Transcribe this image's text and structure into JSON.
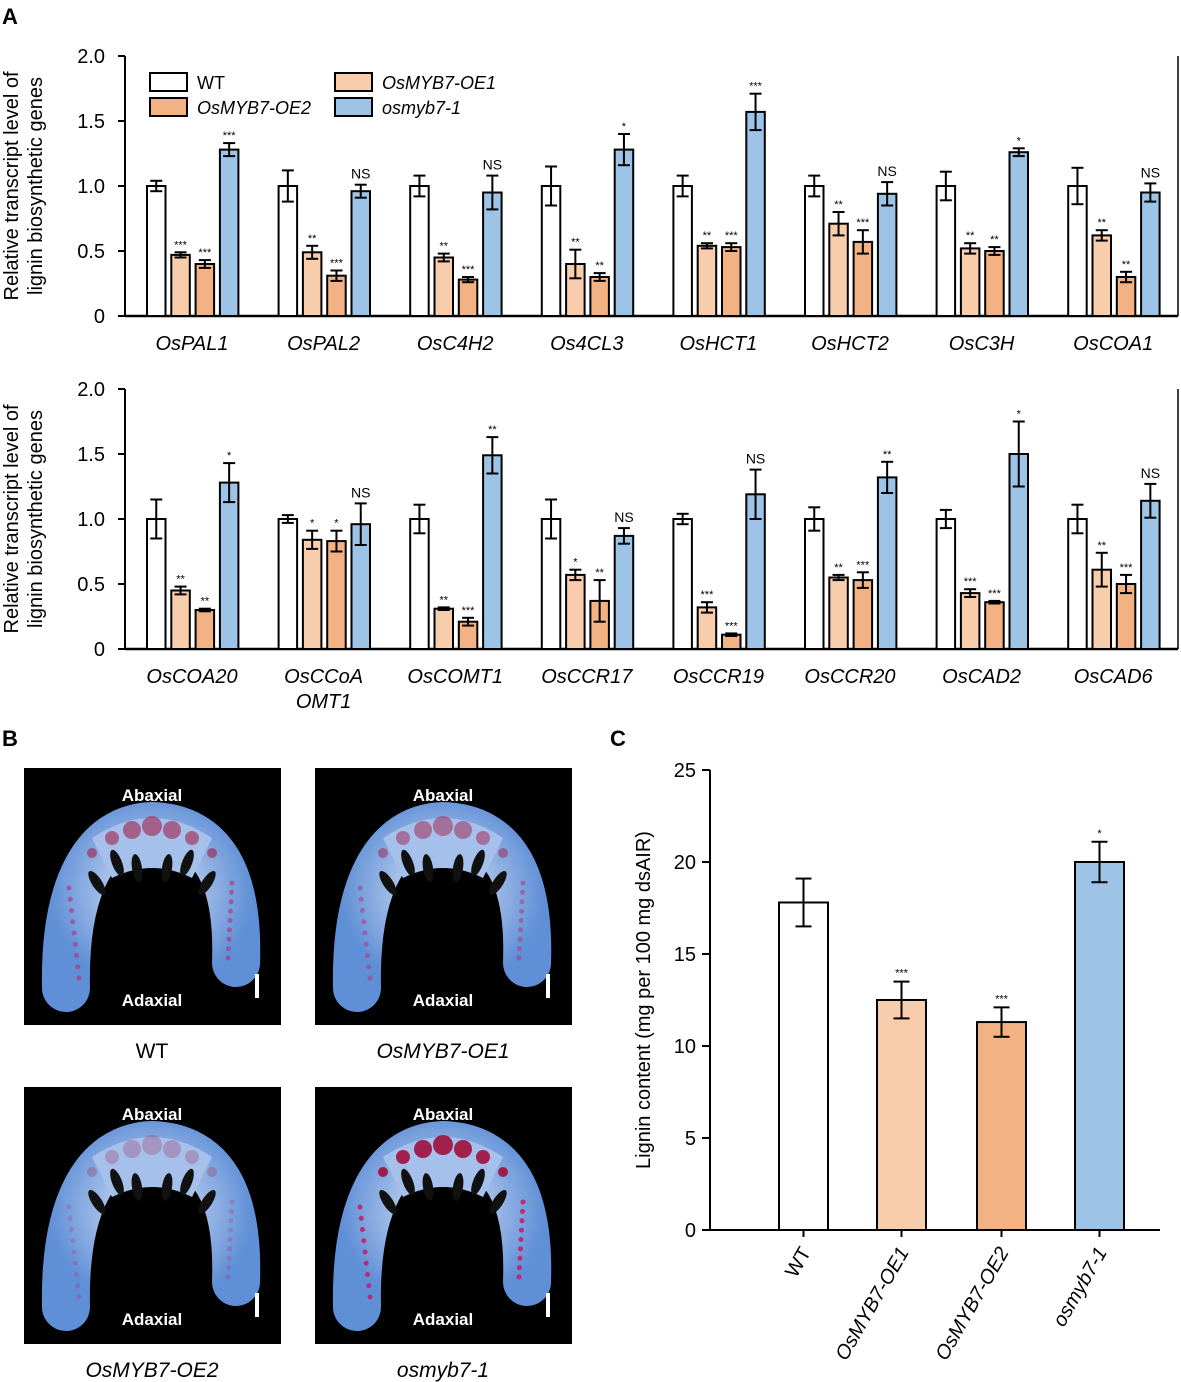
{
  "panel_labels": {
    "a": "A",
    "b": "B",
    "c": "C"
  },
  "colors": {
    "WT": "#ffffff",
    "OE1": "#f8cdac",
    "OE2": "#f2b283",
    "mutant": "#9dc3e6"
  },
  "legend": [
    {
      "key": "WT",
      "label": "WT",
      "italic": false
    },
    {
      "key": "OE1",
      "label": "OsMYB7-OE1",
      "italic": true
    },
    {
      "key": "OE2",
      "label": "OsMYB7-OE2",
      "italic": true
    },
    {
      "key": "mutant",
      "label": "osmyb7-1",
      "italic": true
    }
  ],
  "chart_data": [
    {
      "type": "bar",
      "panel": "A-top",
      "ylabel": [
        "Relative transcript level of",
        "lignin biosynthetic genes"
      ],
      "ylim": [
        0,
        2.0
      ],
      "yticks": [
        "0",
        "0.5",
        "1.0",
        "1.5",
        "2.0"
      ],
      "series_keys": [
        "WT",
        "OE1",
        "OE2",
        "mutant"
      ],
      "groups": [
        {
          "label": [
            "OsPAL1"
          ],
          "values": [
            1.0,
            0.47,
            0.4,
            1.28
          ],
          "errors": [
            0.04,
            0.02,
            0.03,
            0.05
          ],
          "sig": [
            "",
            "***",
            "***",
            "***"
          ]
        },
        {
          "label": [
            "OsPAL2"
          ],
          "values": [
            1.0,
            0.49,
            0.31,
            0.96
          ],
          "errors": [
            0.12,
            0.05,
            0.04,
            0.05
          ],
          "sig": [
            "",
            "**",
            "***",
            "NS"
          ]
        },
        {
          "label": [
            "OsC4H2"
          ],
          "values": [
            1.0,
            0.45,
            0.28,
            0.95
          ],
          "errors": [
            0.08,
            0.03,
            0.02,
            0.13
          ],
          "sig": [
            "",
            "**",
            "***",
            "NS"
          ]
        },
        {
          "label": [
            "Os4CL3"
          ],
          "values": [
            1.0,
            0.4,
            0.3,
            1.28
          ],
          "errors": [
            0.15,
            0.11,
            0.03,
            0.12
          ],
          "sig": [
            "",
            "**",
            "**",
            "*"
          ]
        },
        {
          "label": [
            "OsHCT1"
          ],
          "values": [
            1.0,
            0.54,
            0.53,
            1.57
          ],
          "errors": [
            0.08,
            0.02,
            0.03,
            0.14
          ],
          "sig": [
            "",
            "**",
            "***",
            "***"
          ]
        },
        {
          "label": [
            "OsHCT2"
          ],
          "values": [
            1.0,
            0.71,
            0.57,
            0.94
          ],
          "errors": [
            0.08,
            0.09,
            0.09,
            0.09
          ],
          "sig": [
            "",
            "**",
            "***",
            "NS"
          ]
        },
        {
          "label": [
            "OsC3H"
          ],
          "values": [
            1.0,
            0.52,
            0.5,
            1.26
          ],
          "errors": [
            0.11,
            0.04,
            0.03,
            0.03
          ],
          "sig": [
            "",
            "**",
            "**",
            "*"
          ]
        },
        {
          "label": [
            "OsCOA1"
          ],
          "values": [
            1.0,
            0.62,
            0.3,
            0.95
          ],
          "errors": [
            0.14,
            0.04,
            0.04,
            0.07
          ],
          "sig": [
            "",
            "**",
            "**",
            "NS"
          ]
        }
      ]
    },
    {
      "type": "bar",
      "panel": "A-bottom",
      "ylabel": [
        "Relative transcript level of",
        "lignin biosynthetic genes"
      ],
      "ylim": [
        0,
        2.0
      ],
      "yticks": [
        "0",
        "0.5",
        "1.0",
        "1.5",
        "2.0"
      ],
      "series_keys": [
        "WT",
        "OE1",
        "OE2",
        "mutant"
      ],
      "groups": [
        {
          "label": [
            "OsCOA20"
          ],
          "values": [
            1.0,
            0.45,
            0.3,
            1.28
          ],
          "errors": [
            0.15,
            0.03,
            0.01,
            0.15
          ],
          "sig": [
            "",
            "**",
            "**",
            "*"
          ]
        },
        {
          "label": [
            "OsCCoA",
            "OMT1"
          ],
          "values": [
            1.0,
            0.84,
            0.83,
            0.96
          ],
          "errors": [
            0.03,
            0.07,
            0.08,
            0.16
          ],
          "sig": [
            "",
            "*",
            "*",
            "NS"
          ]
        },
        {
          "label": [
            "OsCOMT1"
          ],
          "values": [
            1.0,
            0.31,
            0.21,
            1.49
          ],
          "errors": [
            0.11,
            0.01,
            0.03,
            0.14
          ],
          "sig": [
            "",
            "**",
            "***",
            "**"
          ]
        },
        {
          "label": [
            "OsCCR17"
          ],
          "values": [
            1.0,
            0.57,
            0.37,
            0.87
          ],
          "errors": [
            0.15,
            0.04,
            0.16,
            0.06
          ],
          "sig": [
            "",
            "*",
            "**",
            "NS"
          ]
        },
        {
          "label": [
            "OsCCR19"
          ],
          "values": [
            1.0,
            0.32,
            0.11,
            1.19
          ],
          "errors": [
            0.04,
            0.04,
            0.01,
            0.19
          ],
          "sig": [
            "",
            "***",
            "***",
            "NS"
          ]
        },
        {
          "label": [
            "OsCCR20"
          ],
          "values": [
            1.0,
            0.55,
            0.53,
            1.32
          ],
          "errors": [
            0.09,
            0.02,
            0.06,
            0.12
          ],
          "sig": [
            "",
            "**",
            "***",
            "**"
          ]
        },
        {
          "label": [
            "OsCAD2"
          ],
          "values": [
            1.0,
            0.43,
            0.36,
            1.5
          ],
          "errors": [
            0.07,
            0.03,
            0.01,
            0.25
          ],
          "sig": [
            "",
            "***",
            "***",
            "*"
          ]
        },
        {
          "label": [
            "OsCAD6"
          ],
          "values": [
            1.0,
            0.61,
            0.5,
            1.14
          ],
          "errors": [
            0.11,
            0.13,
            0.07,
            0.13
          ],
          "sig": [
            "",
            "**",
            "***",
            "NS"
          ]
        }
      ]
    },
    {
      "type": "bar",
      "panel": "C",
      "ylabel": "Lignin content (mg per 100 mg dsAIR)",
      "ylim": [
        0,
        25
      ],
      "yticks": [
        "0",
        "5",
        "10",
        "15",
        "20",
        "25"
      ],
      "categories": [
        "WT",
        "OsMYB7-OE1",
        "OsMYB7-OE2",
        "osmyb7-1"
      ],
      "series_keys": [
        "WT",
        "OE1",
        "OE2",
        "mutant"
      ],
      "values": [
        17.8,
        12.5,
        11.3,
        20.0
      ],
      "errors": [
        1.3,
        1.0,
        0.8,
        1.1
      ],
      "sig": [
        "",
        "***",
        "***",
        "*"
      ]
    }
  ],
  "panel_b": {
    "images": [
      {
        "caption": "WT",
        "italic": false,
        "top": "Abaxial",
        "bottom": "Adaxial",
        "stain": 0.55
      },
      {
        "caption": "OsMYB7-OE1",
        "italic": true,
        "top": "Abaxial",
        "bottom": "Adaxial",
        "stain": 0.45
      },
      {
        "caption": "OsMYB7-OE2",
        "italic": true,
        "top": "Abaxial",
        "bottom": "Adaxial",
        "stain": 0.25
      },
      {
        "caption": "osmyb7-1",
        "italic": true,
        "top": "Abaxial",
        "bottom": "Adaxial",
        "stain": 0.9
      }
    ]
  }
}
